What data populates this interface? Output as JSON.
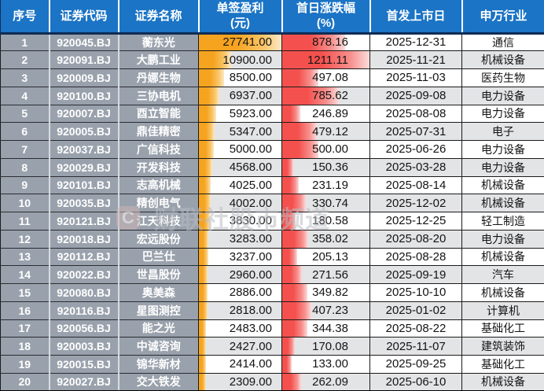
{
  "watermark": {
    "logo": "C",
    "text": "财联社股市频道"
  },
  "colors": {
    "header_bg": "#1b74c5",
    "header_underline": "#0e2c55",
    "label_column_bg": "#99a1ac",
    "stripe_bg": "#e3e4e6",
    "profit_bar": "#f6a31f",
    "pct_bar": "#f4514e"
  },
  "chart_data": {
    "type": "table",
    "columns": [
      {
        "key": "seq",
        "label": "序号",
        "sub": ""
      },
      {
        "key": "code",
        "label": "证券代码",
        "sub": ""
      },
      {
        "key": "name",
        "label": "证券名称",
        "sub": ""
      },
      {
        "key": "profit",
        "label": "单签盈利",
        "sub": "(元)"
      },
      {
        "key": "pct",
        "label": "首日涨跌幅",
        "sub": "(%)"
      },
      {
        "key": "date",
        "label": "首发上市日",
        "sub": ""
      },
      {
        "key": "industry",
        "label": "申万行业",
        "sub": ""
      }
    ],
    "databars": {
      "profit": {
        "max": 27741.0,
        "color": "orange"
      },
      "pct": {
        "max": 1211.11,
        "color": "red"
      }
    },
    "rows": [
      {
        "seq": "1",
        "code": "920045.BJ",
        "name": "蘅东光",
        "profit": "27741.00",
        "pct": "878.16",
        "date": "2025-12-31",
        "industry": "通信"
      },
      {
        "seq": "2",
        "code": "920091.BJ",
        "name": "大鹏工业",
        "profit": "10900.00",
        "pct": "1211.11",
        "date": "2025-11-21",
        "industry": "机械设备"
      },
      {
        "seq": "3",
        "code": "920009.BJ",
        "name": "丹娜生物",
        "profit": "8500.00",
        "pct": "497.08",
        "date": "2025-11-03",
        "industry": "医药生物"
      },
      {
        "seq": "4",
        "code": "920100.BJ",
        "name": "三协电机",
        "profit": "6937.00",
        "pct": "785.62",
        "date": "2025-09-08",
        "industry": "电力设备"
      },
      {
        "seq": "5",
        "code": "920007.BJ",
        "name": "酉立智能",
        "profit": "5923.00",
        "pct": "246.89",
        "date": "2025-08-08",
        "industry": "电力设备"
      },
      {
        "seq": "6",
        "code": "920005.BJ",
        "name": "鼎佳精密",
        "profit": "5347.00",
        "pct": "479.12",
        "date": "2025-07-31",
        "industry": "电子"
      },
      {
        "seq": "7",
        "code": "920037.BJ",
        "name": "广信科技",
        "profit": "5000.00",
        "pct": "500.00",
        "date": "2025-06-26",
        "industry": "电力设备"
      },
      {
        "seq": "8",
        "code": "920029.BJ",
        "name": "开发科技",
        "profit": "4568.00",
        "pct": "150.36",
        "date": "2025-03-28",
        "industry": "电力设备"
      },
      {
        "seq": "9",
        "code": "920101.BJ",
        "name": "志高机械",
        "profit": "4025.00",
        "pct": "231.19",
        "date": "2025-08-14",
        "industry": "机械设备"
      },
      {
        "seq": "10",
        "code": "920035.BJ",
        "name": "精创电气",
        "profit": "4002.00",
        "pct": "330.74",
        "date": "2025-12-02",
        "industry": "机械设备"
      },
      {
        "seq": "11",
        "code": "920121.BJ",
        "name": "江天科技",
        "profit": "3830.00",
        "pct": "180.58",
        "date": "2025-12-25",
        "industry": "轻工制造"
      },
      {
        "seq": "12",
        "code": "920018.BJ",
        "name": "宏远股份",
        "profit": "3283.00",
        "pct": "358.02",
        "date": "2025-08-20",
        "industry": "电力设备"
      },
      {
        "seq": "13",
        "code": "920112.BJ",
        "name": "巴兰仕",
        "profit": "3237.00",
        "pct": "205.13",
        "date": "2025-08-28",
        "industry": "机械设备"
      },
      {
        "seq": "14",
        "code": "920022.BJ",
        "name": "世昌股份",
        "profit": "2960.00",
        "pct": "271.56",
        "date": "2025-09-19",
        "industry": "汽车"
      },
      {
        "seq": "15",
        "code": "920080.BJ",
        "name": "奥美森",
        "profit": "2886.00",
        "pct": "349.82",
        "date": "2025-10-10",
        "industry": "机械设备"
      },
      {
        "seq": "16",
        "code": "920116.BJ",
        "name": "星图测控",
        "profit": "2818.00",
        "pct": "407.23",
        "date": "2025-01-02",
        "industry": "计算机"
      },
      {
        "seq": "17",
        "code": "920056.BJ",
        "name": "能之光",
        "profit": "2483.00",
        "pct": "344.38",
        "date": "2025-08-22",
        "industry": "基础化工"
      },
      {
        "seq": "18",
        "code": "920003.BJ",
        "name": "中诚咨询",
        "profit": "2427.00",
        "pct": "170.08",
        "date": "2025-11-07",
        "industry": "建筑装饰"
      },
      {
        "seq": "19",
        "code": "920015.BJ",
        "name": "锦华新材",
        "profit": "2414.00",
        "pct": "133.00",
        "date": "2025-09-25",
        "industry": "基础化工"
      },
      {
        "seq": "20",
        "code": "920027.BJ",
        "name": "交大铁发",
        "profit": "2309.00",
        "pct": "262.09",
        "date": "2025-06-10",
        "industry": "机械设备"
      }
    ]
  }
}
